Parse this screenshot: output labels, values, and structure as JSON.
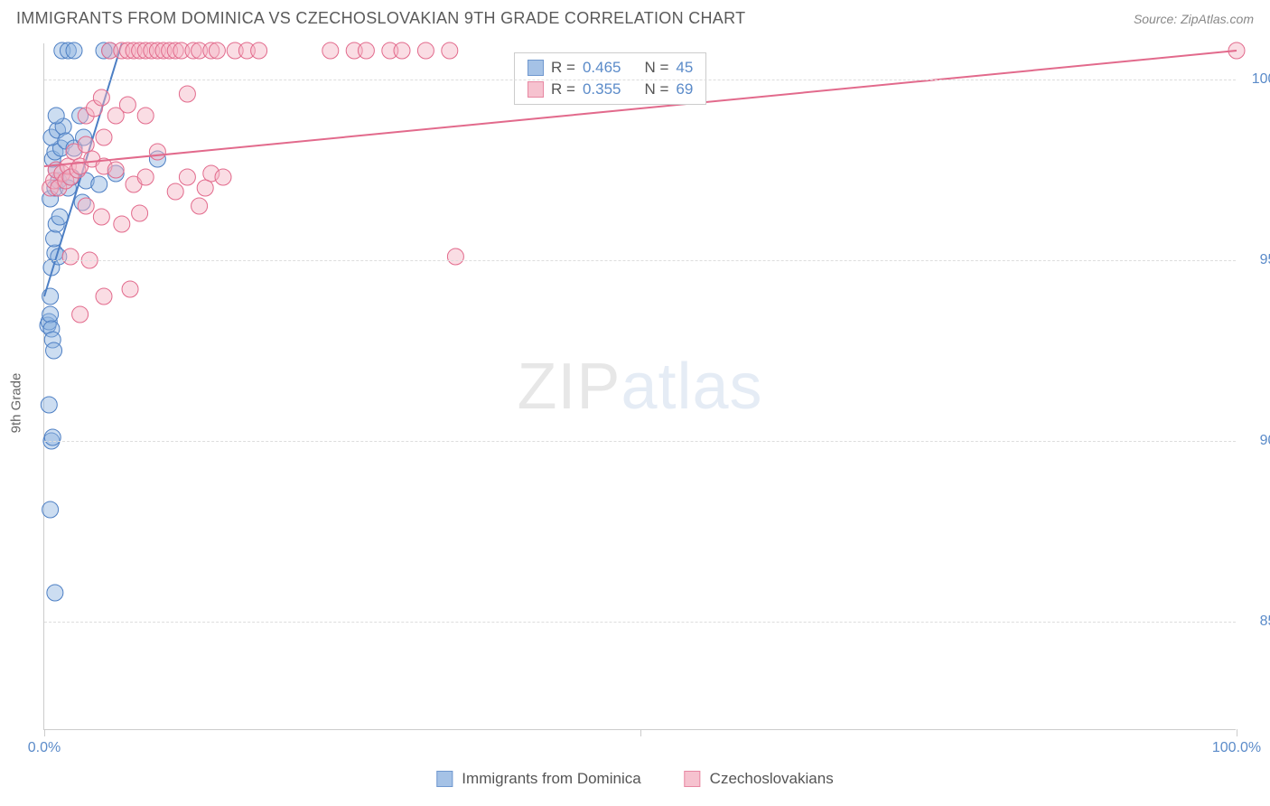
{
  "header": {
    "title": "IMMIGRANTS FROM DOMINICA VS CZECHOSLOVAKIAN 9TH GRADE CORRELATION CHART",
    "source": "Source: ZipAtlas.com"
  },
  "watermark": {
    "zip": "ZIP",
    "atlas": "atlas"
  },
  "chart": {
    "type": "scatter",
    "background_color": "#ffffff",
    "grid_color": "#dddddd",
    "axis_color": "#cccccc",
    "xlim": [
      0,
      100
    ],
    "ylim": [
      82,
      101
    ],
    "x_ticks": [
      0,
      50,
      100
    ],
    "x_tick_labels": [
      "0.0%",
      "",
      "100.0%"
    ],
    "y_ticks": [
      85,
      90,
      95,
      100
    ],
    "y_tick_labels": [
      "85.0%",
      "90.0%",
      "95.0%",
      "100.0%"
    ],
    "y_axis_label": "9th Grade",
    "tick_label_color": "#5b8bc9",
    "tick_label_fontsize": 16,
    "marker_radius": 9,
    "marker_opacity": 0.45,
    "line_width": 2,
    "series": [
      {
        "name": "Immigrants from Dominica",
        "color_fill": "#8fb4e0",
        "color_stroke": "#4d7fc4",
        "r": 0.465,
        "n": 45,
        "trend": {
          "x1": 0,
          "y1": 94.0,
          "x2": 6.5,
          "y2": 101.0
        },
        "points": [
          [
            0.3,
            93.2
          ],
          [
            0.4,
            93.3
          ],
          [
            0.5,
            93.5
          ],
          [
            0.6,
            93.1
          ],
          [
            0.5,
            94.0
          ],
          [
            0.7,
            92.8
          ],
          [
            0.8,
            92.5
          ],
          [
            0.4,
            91.0
          ],
          [
            0.6,
            90.0
          ],
          [
            0.7,
            90.1
          ],
          [
            0.5,
            88.1
          ],
          [
            0.9,
            85.8
          ],
          [
            0.6,
            94.8
          ],
          [
            0.9,
            95.2
          ],
          [
            1.2,
            95.1
          ],
          [
            0.8,
            95.6
          ],
          [
            1.0,
            96.0
          ],
          [
            1.3,
            96.2
          ],
          [
            0.5,
            96.7
          ],
          [
            0.9,
            97.0
          ],
          [
            1.2,
            97.2
          ],
          [
            1.0,
            97.5
          ],
          [
            0.7,
            97.8
          ],
          [
            0.9,
            98.0
          ],
          [
            1.4,
            98.1
          ],
          [
            0.6,
            98.4
          ],
          [
            1.1,
            98.6
          ],
          [
            1.6,
            98.7
          ],
          [
            1.0,
            99.0
          ],
          [
            1.8,
            98.3
          ],
          [
            2.3,
            97.3
          ],
          [
            2.5,
            98.1
          ],
          [
            2.0,
            97.0
          ],
          [
            3.3,
            98.4
          ],
          [
            3.5,
            97.2
          ],
          [
            1.5,
            100.8
          ],
          [
            2.0,
            100.8
          ],
          [
            2.5,
            100.8
          ],
          [
            5.5,
            100.8
          ],
          [
            6.0,
            97.4
          ],
          [
            3.2,
            96.6
          ],
          [
            4.6,
            97.1
          ],
          [
            9.5,
            97.8
          ],
          [
            5.0,
            100.8
          ],
          [
            3.0,
            99.0
          ]
        ]
      },
      {
        "name": "Czechoslovakians",
        "color_fill": "#f4b4c4",
        "color_stroke": "#e26a8c",
        "r": 0.355,
        "n": 69,
        "trend": {
          "x1": 0,
          "y1": 97.6,
          "x2": 100,
          "y2": 100.8
        },
        "points": [
          [
            0.5,
            97.0
          ],
          [
            0.8,
            97.2
          ],
          [
            1.0,
            97.5
          ],
          [
            1.2,
            97.0
          ],
          [
            1.5,
            97.4
          ],
          [
            1.8,
            97.2
          ],
          [
            2.0,
            97.6
          ],
          [
            2.2,
            97.3
          ],
          [
            2.5,
            98.0
          ],
          [
            2.8,
            97.5
          ],
          [
            3.0,
            97.6
          ],
          [
            3.5,
            98.2
          ],
          [
            4.0,
            97.8
          ],
          [
            5.0,
            97.6
          ],
          [
            6.0,
            97.5
          ],
          [
            7.5,
            97.1
          ],
          [
            8.5,
            97.3
          ],
          [
            9.5,
            98.0
          ],
          [
            11.0,
            96.9
          ],
          [
            12.0,
            97.3
          ],
          [
            13.0,
            96.5
          ],
          [
            14.0,
            97.4
          ],
          [
            3.5,
            96.5
          ],
          [
            4.8,
            96.2
          ],
          [
            6.5,
            96.0
          ],
          [
            8.0,
            96.3
          ],
          [
            2.2,
            95.1
          ],
          [
            3.8,
            95.0
          ],
          [
            5.0,
            94.0
          ],
          [
            7.2,
            94.2
          ],
          [
            3.0,
            93.5
          ],
          [
            34.5,
            95.1
          ],
          [
            3.5,
            99.0
          ],
          [
            4.2,
            99.2
          ],
          [
            4.8,
            99.5
          ],
          [
            6.0,
            99.0
          ],
          [
            7.0,
            99.3
          ],
          [
            8.5,
            99.0
          ],
          [
            12.0,
            99.6
          ],
          [
            5.5,
            100.8
          ],
          [
            6.5,
            100.8
          ],
          [
            7.0,
            100.8
          ],
          [
            7.5,
            100.8
          ],
          [
            8.0,
            100.8
          ],
          [
            8.5,
            100.8
          ],
          [
            9.0,
            100.8
          ],
          [
            9.5,
            100.8
          ],
          [
            10.0,
            100.8
          ],
          [
            10.5,
            100.8
          ],
          [
            11.0,
            100.8
          ],
          [
            11.5,
            100.8
          ],
          [
            12.5,
            100.8
          ],
          [
            13.0,
            100.8
          ],
          [
            14.0,
            100.8
          ],
          [
            14.5,
            100.8
          ],
          [
            16.0,
            100.8
          ],
          [
            17.0,
            100.8
          ],
          [
            18.0,
            100.8
          ],
          [
            24.0,
            100.8
          ],
          [
            26.0,
            100.8
          ],
          [
            27.0,
            100.8
          ],
          [
            29.0,
            100.8
          ],
          [
            30.0,
            100.8
          ],
          [
            32.0,
            100.8
          ],
          [
            34.0,
            100.8
          ],
          [
            5.0,
            98.4
          ],
          [
            15.0,
            97.3
          ],
          [
            13.5,
            97.0
          ],
          [
            100.0,
            100.8
          ]
        ]
      }
    ]
  },
  "legend_stats": {
    "r_label": "R =",
    "n_label": "N ="
  },
  "bottom_legend": {
    "items": [
      "Immigrants from Dominica",
      "Czechoslovakians"
    ]
  }
}
